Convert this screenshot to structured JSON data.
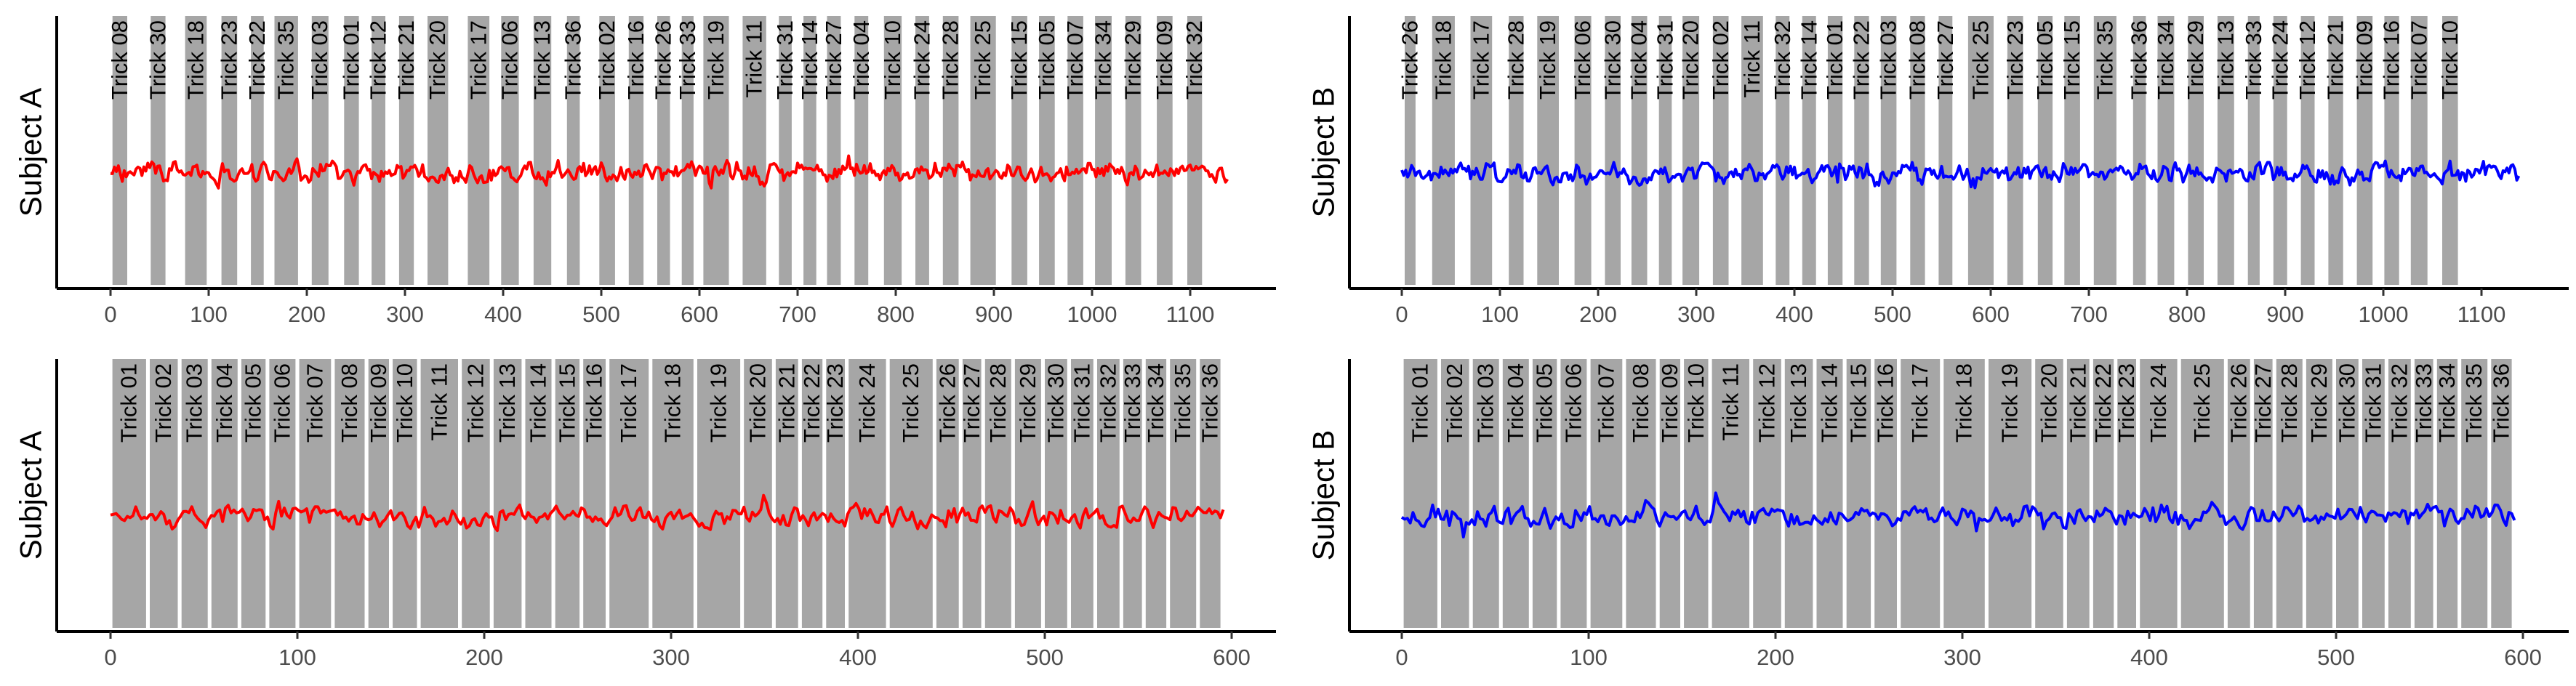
{
  "colors": {
    "subject_a": "#ff0000",
    "subject_b": "#0000ff",
    "band": "#a6a6a6",
    "axis": "#000000",
    "tick_text": "#4d4d4d"
  },
  "chart_data": [
    {
      "type": "line",
      "panel": "top-left",
      "ylabel": "Subject A",
      "color": "#ff0000",
      "xlim": [
        -10,
        1140
      ],
      "xticks": [
        0,
        100,
        200,
        300,
        400,
        500,
        600,
        700,
        800,
        900,
        1000,
        1100
      ],
      "grid": false,
      "bands": [
        {
          "label": "Trick 08",
          "start": 2,
          "end": 17
        },
        {
          "label": "Trick 30",
          "start": 41,
          "end": 56
        },
        {
          "label": "Trick 18",
          "start": 76,
          "end": 98
        },
        {
          "label": "Trick 23",
          "start": 113,
          "end": 129
        },
        {
          "label": "Trick 22",
          "start": 143,
          "end": 156
        },
        {
          "label": "Trick 35",
          "start": 167,
          "end": 191
        },
        {
          "label": "Trick 03",
          "start": 205,
          "end": 222
        },
        {
          "label": "Trick 01",
          "start": 238,
          "end": 253
        },
        {
          "label": "Trick 12",
          "start": 266,
          "end": 280
        },
        {
          "label": "Trick 21",
          "start": 294,
          "end": 309
        },
        {
          "label": "Trick 20",
          "start": 323,
          "end": 344
        },
        {
          "label": "Trick 17",
          "start": 364,
          "end": 386
        },
        {
          "label": "Trick 06",
          "start": 398,
          "end": 416
        },
        {
          "label": "Trick 13",
          "start": 431,
          "end": 449
        },
        {
          "label": "Trick 36",
          "start": 465,
          "end": 478
        },
        {
          "label": "Trick 02",
          "start": 498,
          "end": 514
        },
        {
          "label": "Trick 16",
          "start": 528,
          "end": 543
        },
        {
          "label": "Trick 26",
          "start": 557,
          "end": 570
        },
        {
          "label": "Trick 33",
          "start": 582,
          "end": 594
        },
        {
          "label": "Trick 19",
          "start": 604,
          "end": 630
        },
        {
          "label": "Trick 11",
          "start": 644,
          "end": 668
        },
        {
          "label": "Trick 31",
          "start": 681,
          "end": 694
        },
        {
          "label": "Trick 14",
          "start": 706,
          "end": 719
        },
        {
          "label": "Trick 27",
          "start": 730,
          "end": 744
        },
        {
          "label": "Trick 04",
          "start": 758,
          "end": 772
        },
        {
          "label": "Trick 10",
          "start": 788,
          "end": 806
        },
        {
          "label": "Trick 24",
          "start": 820,
          "end": 834
        },
        {
          "label": "Trick 28",
          "start": 848,
          "end": 864
        },
        {
          "label": "Trick 25",
          "start": 876,
          "end": 902
        },
        {
          "label": "Trick 15",
          "start": 918,
          "end": 934
        },
        {
          "label": "Trick 05",
          "start": 946,
          "end": 962
        },
        {
          "label": "Trick 07",
          "start": 975,
          "end": 991
        },
        {
          "label": "Trick 34",
          "start": 1003,
          "end": 1020
        },
        {
          "label": "Trick 29",
          "start": 1034,
          "end": 1050
        },
        {
          "label": "Trick 09",
          "start": 1066,
          "end": 1082
        },
        {
          "label": "Trick 32",
          "start": 1097,
          "end": 1112
        }
      ]
    },
    {
      "type": "line",
      "panel": "top-right",
      "ylabel": "Subject B",
      "color": "#0000ff",
      "xlim": [
        -10,
        1140
      ],
      "xticks": [
        0,
        100,
        200,
        300,
        400,
        500,
        600,
        700,
        800,
        900,
        1000,
        1100
      ],
      "grid": false,
      "bands": [
        {
          "label": "Trick 26",
          "start": 3,
          "end": 14
        },
        {
          "label": "Trick 18",
          "start": 31,
          "end": 54
        },
        {
          "label": "Trick 17",
          "start": 70,
          "end": 92
        },
        {
          "label": "Trick 28",
          "start": 109,
          "end": 124
        },
        {
          "label": "Trick 19",
          "start": 138,
          "end": 160
        },
        {
          "label": "Trick 06",
          "start": 176,
          "end": 193
        },
        {
          "label": "Trick 30",
          "start": 207,
          "end": 223
        },
        {
          "label": "Trick 04",
          "start": 234,
          "end": 250
        },
        {
          "label": "Trick 31",
          "start": 262,
          "end": 275
        },
        {
          "label": "Trick 20",
          "start": 286,
          "end": 303
        },
        {
          "label": "Trick 02",
          "start": 317,
          "end": 333
        },
        {
          "label": "Trick 11",
          "start": 346,
          "end": 368
        },
        {
          "label": "Trick 32",
          "start": 381,
          "end": 395
        },
        {
          "label": "Trick 14",
          "start": 408,
          "end": 422
        },
        {
          "label": "Trick 01",
          "start": 434,
          "end": 449
        },
        {
          "label": "Trick 22",
          "start": 461,
          "end": 476
        },
        {
          "label": "Trick 03",
          "start": 488,
          "end": 504
        },
        {
          "label": "Trick 08",
          "start": 518,
          "end": 533
        },
        {
          "label": "Trick 27",
          "start": 547,
          "end": 561
        },
        {
          "label": "Trick 25",
          "start": 577,
          "end": 603
        },
        {
          "label": "Trick 23",
          "start": 617,
          "end": 633
        },
        {
          "label": "Trick 05",
          "start": 648,
          "end": 663
        },
        {
          "label": "Trick 15",
          "start": 675,
          "end": 691
        },
        {
          "label": "Trick 35",
          "start": 705,
          "end": 728
        },
        {
          "label": "Trick 36",
          "start": 745,
          "end": 758
        },
        {
          "label": "Trick 34",
          "start": 770,
          "end": 787
        },
        {
          "label": "Trick 29",
          "start": 801,
          "end": 817
        },
        {
          "label": "Trick 13",
          "start": 831,
          "end": 848
        },
        {
          "label": "Trick 33",
          "start": 862,
          "end": 874
        },
        {
          "label": "Trick 24",
          "start": 888,
          "end": 902
        },
        {
          "label": "Trick 12",
          "start": 916,
          "end": 930
        },
        {
          "label": "Trick 21",
          "start": 944,
          "end": 959
        },
        {
          "label": "Trick 09",
          "start": 973,
          "end": 989
        },
        {
          "label": "Trick 16",
          "start": 1001,
          "end": 1016
        },
        {
          "label": "Trick 07",
          "start": 1028,
          "end": 1045
        },
        {
          "label": "Trick 10",
          "start": 1060,
          "end": 1076
        }
      ]
    },
    {
      "type": "line",
      "panel": "bottom-left",
      "ylabel": "Subject A",
      "color": "#ff0000",
      "xlim": [
        -5.5,
        598
      ],
      "xticks": [
        0,
        100,
        200,
        300,
        400,
        500,
        600
      ],
      "grid": false,
      "bands": [
        {
          "label": "Trick 01",
          "start": 1,
          "end": 19
        },
        {
          "label": "Trick 02",
          "start": 21,
          "end": 36
        },
        {
          "label": "Trick 03",
          "start": 38,
          "end": 52
        },
        {
          "label": "Trick 04",
          "start": 54,
          "end": 68
        },
        {
          "label": "Trick 05",
          "start": 70,
          "end": 83
        },
        {
          "label": "Trick 06",
          "start": 85,
          "end": 99
        },
        {
          "label": "Trick 07",
          "start": 101,
          "end": 118
        },
        {
          "label": "Trick 08",
          "start": 120,
          "end": 136
        },
        {
          "label": "Trick 09",
          "start": 138,
          "end": 149
        },
        {
          "label": "Trick 10",
          "start": 151,
          "end": 164
        },
        {
          "label": "Trick 11",
          "start": 166,
          "end": 186
        },
        {
          "label": "Trick 12",
          "start": 188,
          "end": 203
        },
        {
          "label": "Trick 13",
          "start": 205,
          "end": 220
        },
        {
          "label": "Trick 14",
          "start": 222,
          "end": 236
        },
        {
          "label": "Trick 15",
          "start": 238,
          "end": 251
        },
        {
          "label": "Trick 16",
          "start": 253,
          "end": 265
        },
        {
          "label": "Trick 17",
          "start": 267,
          "end": 288
        },
        {
          "label": "Trick 18",
          "start": 290,
          "end": 312
        },
        {
          "label": "Trick 19",
          "start": 314,
          "end": 337
        },
        {
          "label": "Trick 20",
          "start": 339,
          "end": 354
        },
        {
          "label": "Trick 21",
          "start": 356,
          "end": 368
        },
        {
          "label": "Trick 22",
          "start": 370,
          "end": 381
        },
        {
          "label": "Trick 23",
          "start": 383,
          "end": 393
        },
        {
          "label": "Trick 24",
          "start": 395,
          "end": 415
        },
        {
          "label": "Trick 25",
          "start": 417,
          "end": 440
        },
        {
          "label": "Trick 26",
          "start": 442,
          "end": 454
        },
        {
          "label": "Trick 27",
          "start": 456,
          "end": 466
        },
        {
          "label": "Trick 28",
          "start": 468,
          "end": 482
        },
        {
          "label": "Trick 29",
          "start": 484,
          "end": 498
        },
        {
          "label": "Trick 30",
          "start": 500,
          "end": 512
        },
        {
          "label": "Trick 31",
          "start": 514,
          "end": 526
        },
        {
          "label": "Trick 32",
          "start": 528,
          "end": 540
        },
        {
          "label": "Trick 33",
          "start": 542,
          "end": 552
        },
        {
          "label": "Trick 34",
          "start": 554,
          "end": 565
        },
        {
          "label": "Trick 35",
          "start": 567,
          "end": 581
        },
        {
          "label": "Trick 36",
          "start": 583,
          "end": 594
        }
      ]
    },
    {
      "type": "line",
      "panel": "bottom-right",
      "ylabel": "Subject B",
      "color": "#0000ff",
      "xlim": [
        -5.5,
        598
      ],
      "xticks": [
        0,
        100,
        200,
        300,
        400,
        500,
        600
      ],
      "grid": false,
      "bands": [
        {
          "label": "Trick 01",
          "start": 1,
          "end": 19
        },
        {
          "label": "Trick 02",
          "start": 21,
          "end": 36
        },
        {
          "label": "Trick 03",
          "start": 38,
          "end": 52
        },
        {
          "label": "Trick 04",
          "start": 54,
          "end": 68
        },
        {
          "label": "Trick 05",
          "start": 70,
          "end": 83
        },
        {
          "label": "Trick 06",
          "start": 85,
          "end": 99
        },
        {
          "label": "Trick 07",
          "start": 101,
          "end": 118
        },
        {
          "label": "Trick 08",
          "start": 120,
          "end": 136
        },
        {
          "label": "Trick 09",
          "start": 138,
          "end": 149
        },
        {
          "label": "Trick 10",
          "start": 151,
          "end": 164
        },
        {
          "label": "Trick 11",
          "start": 166,
          "end": 186
        },
        {
          "label": "Trick 12",
          "start": 188,
          "end": 203
        },
        {
          "label": "Trick 13",
          "start": 205,
          "end": 220
        },
        {
          "label": "Trick 14",
          "start": 222,
          "end": 236
        },
        {
          "label": "Trick 15",
          "start": 238,
          "end": 251
        },
        {
          "label": "Trick 16",
          "start": 253,
          "end": 265
        },
        {
          "label": "Trick 17",
          "start": 267,
          "end": 288
        },
        {
          "label": "Trick 18",
          "start": 290,
          "end": 312
        },
        {
          "label": "Trick 19",
          "start": 314,
          "end": 337
        },
        {
          "label": "Trick 20",
          "start": 339,
          "end": 354
        },
        {
          "label": "Trick 21",
          "start": 356,
          "end": 368
        },
        {
          "label": "Trick 22",
          "start": 370,
          "end": 381
        },
        {
          "label": "Trick 23",
          "start": 383,
          "end": 393
        },
        {
          "label": "Trick 24",
          "start": 395,
          "end": 415
        },
        {
          "label": "Trick 25",
          "start": 417,
          "end": 440
        },
        {
          "label": "Trick 26",
          "start": 442,
          "end": 454
        },
        {
          "label": "Trick 27",
          "start": 456,
          "end": 466
        },
        {
          "label": "Trick 28",
          "start": 468,
          "end": 482
        },
        {
          "label": "Trick 29",
          "start": 484,
          "end": 498
        },
        {
          "label": "Trick 30",
          "start": 500,
          "end": 512
        },
        {
          "label": "Trick 31",
          "start": 514,
          "end": 526
        },
        {
          "label": "Trick 32",
          "start": 528,
          "end": 540
        },
        {
          "label": "Trick 33",
          "start": 542,
          "end": 552
        },
        {
          "label": "Trick 34",
          "start": 554,
          "end": 565
        },
        {
          "label": "Trick 35",
          "start": 567,
          "end": 581
        },
        {
          "label": "Trick 36",
          "start": 583,
          "end": 594
        }
      ]
    }
  ]
}
